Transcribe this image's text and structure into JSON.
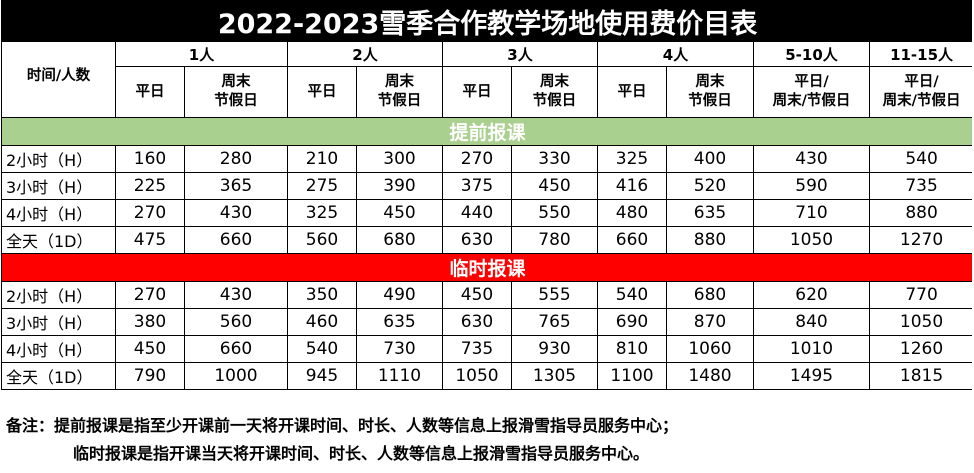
{
  "title": "2022-2023雪季合作教学场地使用费价目表",
  "corner_label": "时间/人数",
  "groups": [
    "1人",
    "2人",
    "3人",
    "4人",
    "5-10人",
    "11-15人"
  ],
  "sub_weekday": "平日",
  "sub_weekend_l1": "周末",
  "sub_weekend_l2": "节假日",
  "sub_combined_l1": "平日/",
  "sub_combined_l2": "周末/节假日",
  "sections": [
    {
      "title": "提前报课",
      "color": "#a9d08e",
      "rows": [
        {
          "label": "2小时（H）",
          "values": [
            "160",
            "280",
            "210",
            "300",
            "270",
            "330",
            "325",
            "400",
            "430",
            "540"
          ]
        },
        {
          "label": "3小时（H）",
          "values": [
            "225",
            "365",
            "275",
            "390",
            "375",
            "450",
            "416",
            "520",
            "590",
            "735"
          ]
        },
        {
          "label": "4小时（H）",
          "values": [
            "270",
            "430",
            "325",
            "450",
            "440",
            "550",
            "480",
            "635",
            "710",
            "880"
          ]
        },
        {
          "label": "全天（1D）",
          "values": [
            "475",
            "660",
            "560",
            "680",
            "630",
            "780",
            "660",
            "880",
            "1050",
            "1270"
          ]
        }
      ]
    },
    {
      "title": "临时报课",
      "color": "#ff0000",
      "rows": [
        {
          "label": "2小时（H）",
          "values": [
            "270",
            "430",
            "350",
            "490",
            "450",
            "555",
            "540",
            "680",
            "620",
            "770"
          ]
        },
        {
          "label": "3小时（H）",
          "values": [
            "380",
            "560",
            "460",
            "635",
            "630",
            "765",
            "690",
            "870",
            "840",
            "1050"
          ]
        },
        {
          "label": "4小时（H）",
          "values": [
            "450",
            "660",
            "540",
            "730",
            "735",
            "930",
            "810",
            "1060",
            "1010",
            "1260"
          ]
        },
        {
          "label": "全天（1D）",
          "values": [
            "790",
            "1000",
            "945",
            "1110",
            "1050",
            "1305",
            "1100",
            "1480",
            "1495",
            "1815"
          ]
        }
      ]
    }
  ],
  "note": {
    "prefix": "备注：",
    "line1": "提前报课是指至少开课前一天将开课时间、时长、人数等信息上报滑雪指导员服务中心；",
    "line2": "临时报课是指开课当天将开课时间、时长、人数等信息上报滑雪指导员服务中心。"
  }
}
